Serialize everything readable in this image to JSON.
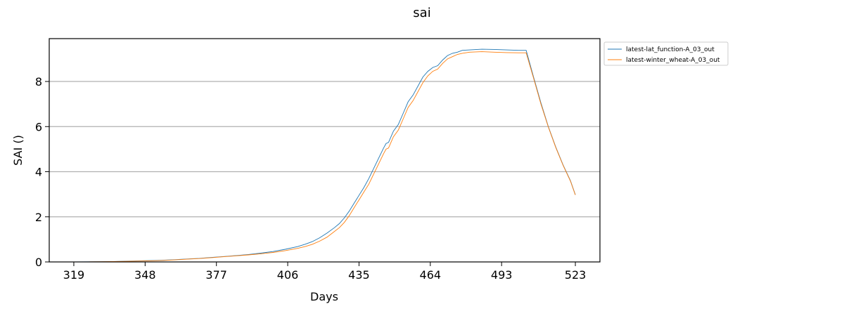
{
  "chart_data": {
    "type": "line",
    "title": "sai",
    "xlabel": "Days",
    "ylabel": "SAI ()",
    "xlim": [
      309,
      533
    ],
    "ylim": [
      0,
      9.9
    ],
    "xticks": [
      319,
      348,
      377,
      406,
      435,
      464,
      493,
      523
    ],
    "yticks": [
      0,
      2,
      4,
      6,
      8
    ],
    "grid": "y",
    "legend": "outside-top-right",
    "series": [
      {
        "name": "latest-lat_function-A_03_out",
        "color": "#1f77b4",
        "points": [
          [
            319,
            0.0
          ],
          [
            325,
            0.005
          ],
          [
            330,
            0.01
          ],
          [
            335,
            0.02
          ],
          [
            340,
            0.03
          ],
          [
            345,
            0.045
          ],
          [
            350,
            0.06
          ],
          [
            355,
            0.075
          ],
          [
            360,
            0.1
          ],
          [
            365,
            0.13
          ],
          [
            370,
            0.16
          ],
          [
            375,
            0.2
          ],
          [
            380,
            0.24
          ],
          [
            385,
            0.28
          ],
          [
            390,
            0.33
          ],
          [
            395,
            0.39
          ],
          [
            400,
            0.46
          ],
          [
            405,
            0.56
          ],
          [
            410,
            0.68
          ],
          [
            413,
            0.78
          ],
          [
            416,
            0.9
          ],
          [
            419,
            1.07
          ],
          [
            422,
            1.28
          ],
          [
            425,
            1.52
          ],
          [
            427,
            1.7
          ],
          [
            429,
            1.95
          ],
          [
            431,
            2.25
          ],
          [
            433,
            2.6
          ],
          [
            435,
            2.95
          ],
          [
            437,
            3.3
          ],
          [
            439,
            3.7
          ],
          [
            441,
            4.15
          ],
          [
            443,
            4.6
          ],
          [
            445,
            5.05
          ],
          [
            446,
            5.25
          ],
          [
            447,
            5.3
          ],
          [
            449,
            5.8
          ],
          [
            451,
            6.1
          ],
          [
            453,
            6.6
          ],
          [
            455,
            7.1
          ],
          [
            457,
            7.4
          ],
          [
            459,
            7.8
          ],
          [
            461,
            8.2
          ],
          [
            463,
            8.45
          ],
          [
            465,
            8.62
          ],
          [
            467,
            8.7
          ],
          [
            469,
            8.95
          ],
          [
            471,
            9.15
          ],
          [
            473,
            9.25
          ],
          [
            475,
            9.3
          ],
          [
            477,
            9.38
          ],
          [
            480,
            9.4
          ],
          [
            485,
            9.43
          ],
          [
            490,
            9.42
          ],
          [
            495,
            9.4
          ],
          [
            500,
            9.38
          ],
          [
            503,
            9.38
          ],
          [
            506,
            8.2
          ],
          [
            509,
            7.05
          ],
          [
            512,
            6.0
          ],
          [
            515,
            5.1
          ],
          [
            518,
            4.3
          ],
          [
            521,
            3.6
          ],
          [
            523,
            2.98
          ]
        ]
      },
      {
        "name": "latest-winter_wheat-A_03_out",
        "color": "#ff7f0e",
        "points": [
          [
            319,
            0.0
          ],
          [
            325,
            0.004
          ],
          [
            330,
            0.008
          ],
          [
            335,
            0.015
          ],
          [
            340,
            0.025
          ],
          [
            345,
            0.038
          ],
          [
            350,
            0.05
          ],
          [
            355,
            0.065
          ],
          [
            360,
            0.09
          ],
          [
            365,
            0.12
          ],
          [
            370,
            0.15
          ],
          [
            375,
            0.19
          ],
          [
            380,
            0.23
          ],
          [
            385,
            0.27
          ],
          [
            390,
            0.31
          ],
          [
            395,
            0.36
          ],
          [
            400,
            0.42
          ],
          [
            405,
            0.5
          ],
          [
            410,
            0.6
          ],
          [
            413,
            0.68
          ],
          [
            416,
            0.78
          ],
          [
            419,
            0.92
          ],
          [
            422,
            1.1
          ],
          [
            425,
            1.35
          ],
          [
            427,
            1.52
          ],
          [
            429,
            1.75
          ],
          [
            431,
            2.05
          ],
          [
            433,
            2.4
          ],
          [
            435,
            2.75
          ],
          [
            437,
            3.1
          ],
          [
            439,
            3.45
          ],
          [
            441,
            3.9
          ],
          [
            443,
            4.35
          ],
          [
            445,
            4.8
          ],
          [
            446,
            5.0
          ],
          [
            447,
            5.05
          ],
          [
            449,
            5.55
          ],
          [
            451,
            5.85
          ],
          [
            453,
            6.35
          ],
          [
            455,
            6.85
          ],
          [
            457,
            7.15
          ],
          [
            459,
            7.55
          ],
          [
            461,
            7.95
          ],
          [
            463,
            8.25
          ],
          [
            465,
            8.45
          ],
          [
            467,
            8.55
          ],
          [
            469,
            8.8
          ],
          [
            471,
            9.0
          ],
          [
            473,
            9.1
          ],
          [
            475,
            9.2
          ],
          [
            477,
            9.25
          ],
          [
            480,
            9.3
          ],
          [
            485,
            9.32
          ],
          [
            490,
            9.3
          ],
          [
            495,
            9.28
          ],
          [
            500,
            9.27
          ],
          [
            503,
            9.27
          ],
          [
            506,
            8.15
          ],
          [
            509,
            7.0
          ],
          [
            512,
            5.98
          ],
          [
            515,
            5.08
          ],
          [
            518,
            4.28
          ],
          [
            521,
            3.58
          ],
          [
            523,
            2.97
          ]
        ]
      }
    ]
  }
}
